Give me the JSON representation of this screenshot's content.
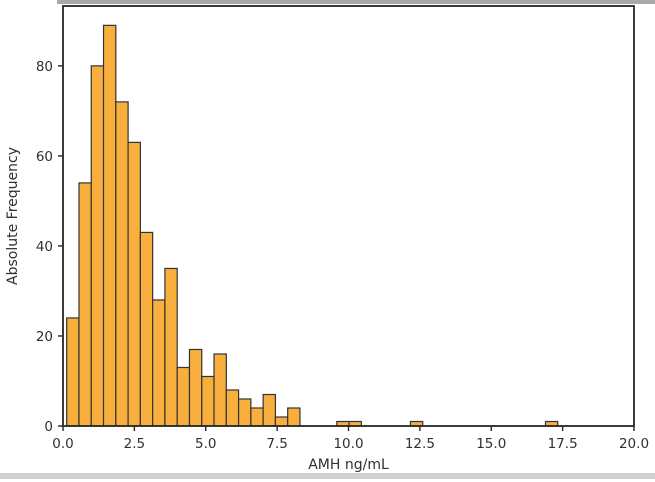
{
  "page": {
    "background": "#ffffff"
  },
  "dividers": {
    "top_color": "#a5a9ab",
    "bottom_color": "#cdd1d3"
  },
  "chart_data": {
    "type": "bar",
    "subtype": "histogram",
    "title": "",
    "xlabel": "AMH ng/mL",
    "ylabel": "Absolute Frequency",
    "bar_color": "#F8AF3D",
    "bar_edge_color": "#333333",
    "axis_color": "#262626",
    "tick_label_color": "#303030",
    "bin_start": 0.13,
    "bin_width": 0.43,
    "counts": [
      24,
      54,
      80,
      89,
      72,
      63,
      43,
      28,
      35,
      13,
      17,
      11,
      16,
      8,
      6,
      4,
      7,
      2,
      4,
      0,
      0,
      0,
      1,
      1,
      0,
      0,
      0,
      0,
      1,
      0,
      0,
      0,
      0,
      0,
      0,
      0,
      0,
      0,
      0,
      1
    ],
    "xlim": [
      0,
      20
    ],
    "ylim": [
      0,
      93.3
    ],
    "x_tick_values": [
      0,
      2.5,
      5,
      7.5,
      10,
      12.5,
      15,
      17.5,
      20
    ],
    "x_tick_labels": [
      "0.0",
      "2.5",
      "5.0",
      "7.5",
      "10.0",
      "12.5",
      "15.0",
      "17.5",
      "20.0"
    ],
    "y_tick_values": [
      0,
      20,
      40,
      60,
      80
    ],
    "y_tick_labels": [
      "0",
      "20",
      "40",
      "60",
      "80"
    ],
    "grid": false,
    "legend": "none"
  }
}
